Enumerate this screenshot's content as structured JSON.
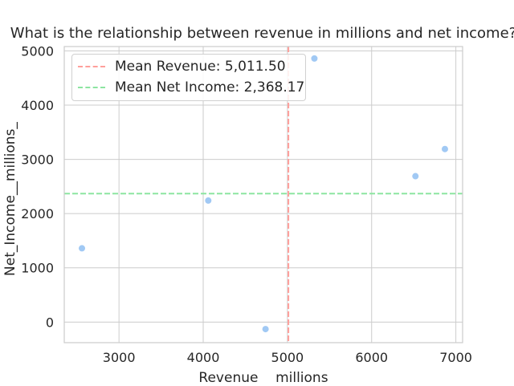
{
  "chart_data": {
    "type": "scatter",
    "title": "What is the relationship between revenue in millions and net income?",
    "xlabel": "Revenue    millions",
    "ylabel": "Net_Income__millions_",
    "xlim": [
      2350,
      7080
    ],
    "ylim": [
      -380,
      5080
    ],
    "x_ticks": [
      "3000",
      "4000",
      "5000",
      "6000",
      "7000"
    ],
    "y_ticks": [
      "0",
      "1000",
      "2000",
      "3000",
      "4000",
      "5000"
    ],
    "grid": true,
    "legend_position": "top-left",
    "points": [
      {
        "x": 2560,
        "y": 1360
      },
      {
        "x": 4060,
        "y": 2240
      },
      {
        "x": 4740,
        "y": -130
      },
      {
        "x": 5320,
        "y": 4860
      },
      {
        "x": 6520,
        "y": 2690
      },
      {
        "x": 6870,
        "y": 3190
      }
    ],
    "point_color": "#a1c9f4",
    "reference_lines": [
      {
        "name": "Mean Revenue: 5,011.50",
        "orientation": "vertical",
        "value": 5011.5,
        "color": "#ff9f9b"
      },
      {
        "name": "Mean Net Income: 2,368.17",
        "orientation": "horizontal",
        "value": 2368.17,
        "color": "#8de5a1"
      }
    ]
  }
}
